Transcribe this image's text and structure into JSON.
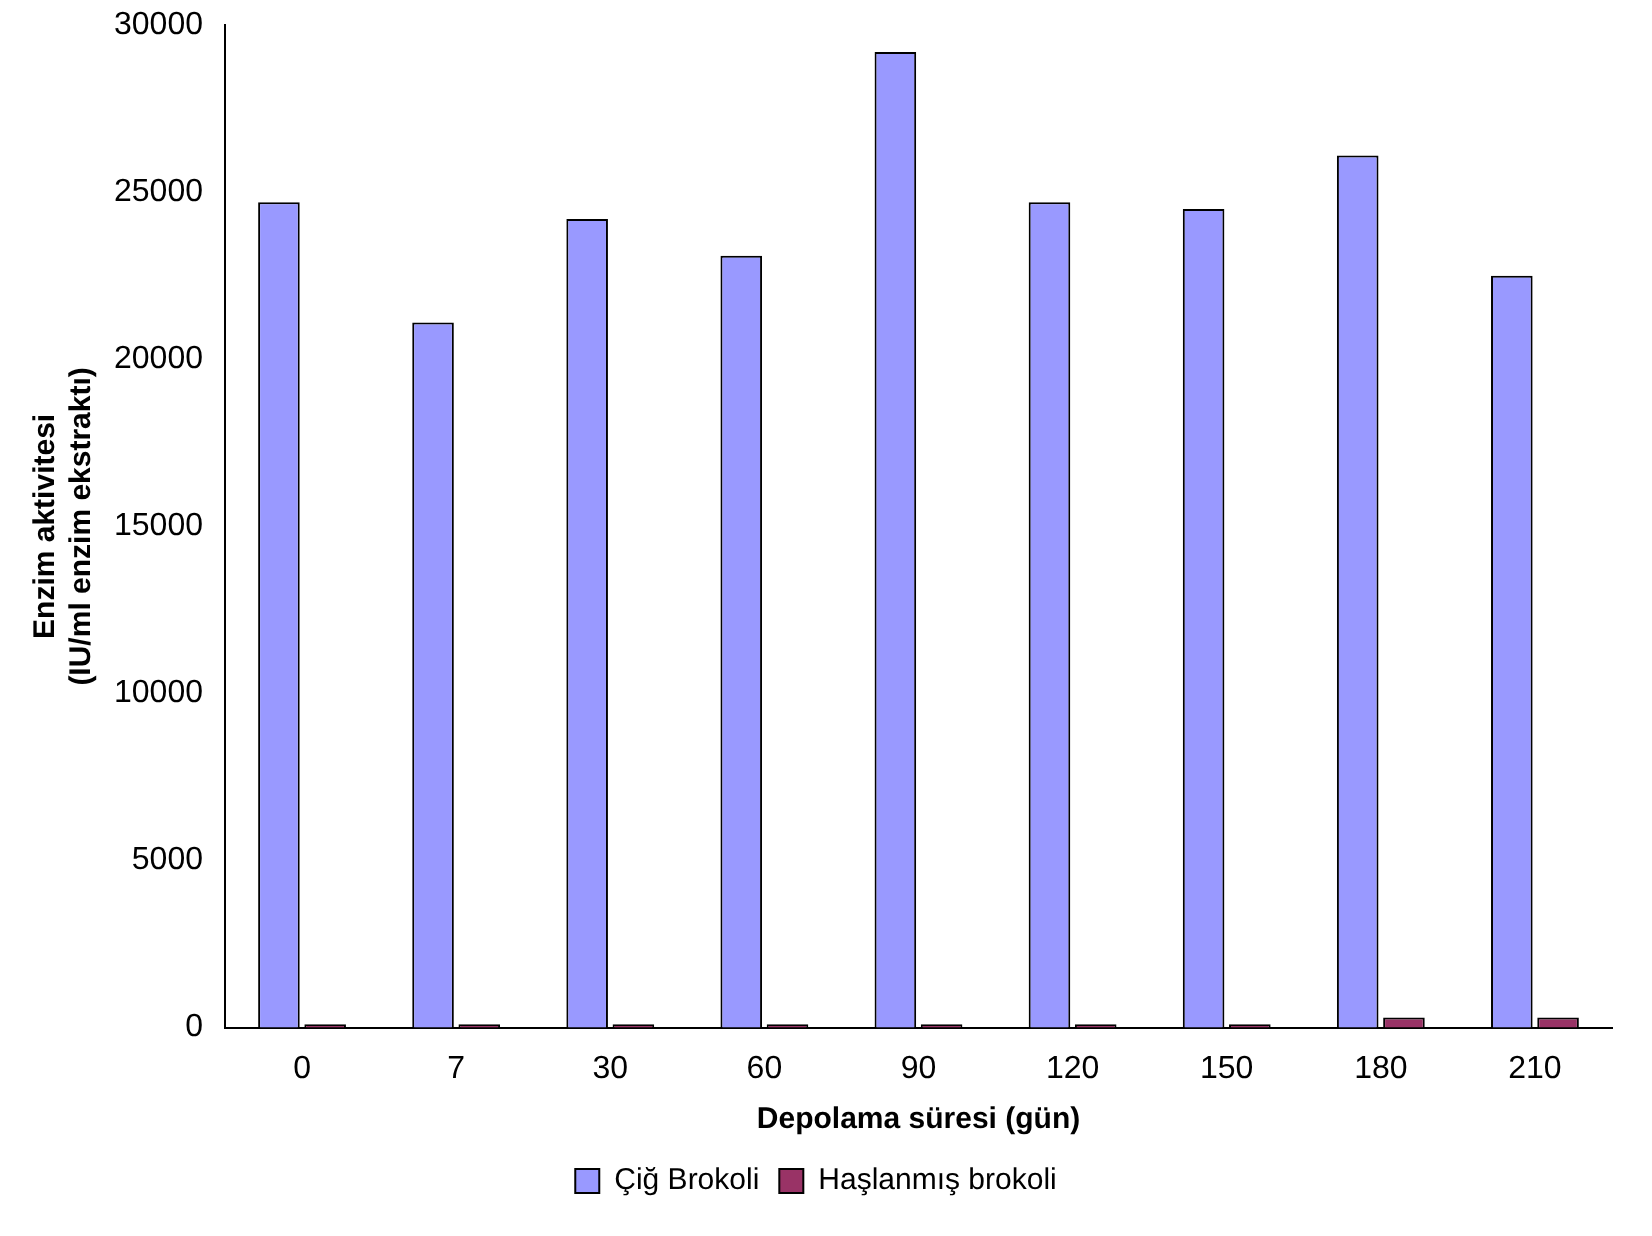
{
  "chart_data": {
    "type": "bar",
    "xlabel": "Depolama süresi (gün)",
    "ylabel": "Enzim aktivitesi\n(IU/ml enzim ekstraktı)",
    "categories": [
      "0",
      "7",
      "30",
      "60",
      "90",
      "120",
      "150",
      "180",
      "210"
    ],
    "series": [
      {
        "name": "Çiğ Brokoli",
        "color": "#9999ff",
        "values": [
          24700,
          21100,
          24200,
          23100,
          29200,
          24700,
          24500,
          26100,
          22500
        ]
      },
      {
        "name": "Haşlanmış brokoli",
        "color": "#993366",
        "values": [
          100,
          100,
          100,
          100,
          100,
          100,
          100,
          300,
          300
        ]
      }
    ],
    "ylim": [
      0,
      30000
    ],
    "yticks": [
      0,
      5000,
      10000,
      15000,
      20000,
      25000,
      30000
    ],
    "grid": false,
    "legend": "bottom"
  }
}
